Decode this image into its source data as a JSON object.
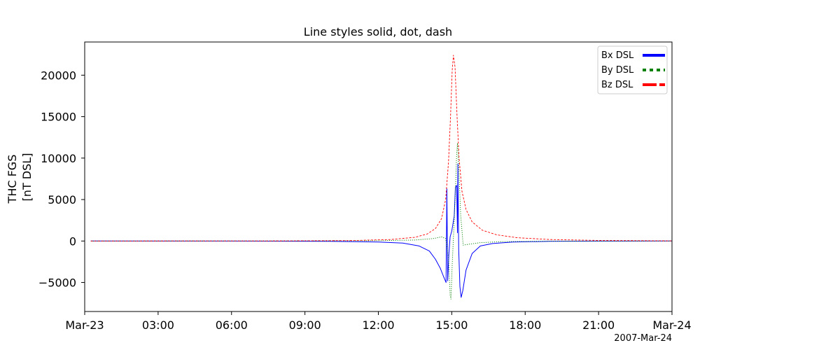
{
  "chart_data": {
    "type": "line",
    "title": "Line styles solid, dot, dash",
    "ylabel_lines": [
      "THC FGS",
      "[nT DSL]"
    ],
    "date_label": "2007-Mar-24",
    "x_range": [
      "2007-03-23T00:00",
      "2007-03-24T00:00"
    ],
    "ylim": [
      -8500,
      24000
    ],
    "x_ticks": [
      {
        "t": "2007-03-23T00:00",
        "label": "Mar-23"
      },
      {
        "t": "2007-03-23T03:00",
        "label": "03:00"
      },
      {
        "t": "2007-03-23T06:00",
        "label": "06:00"
      },
      {
        "t": "2007-03-23T09:00",
        "label": "09:00"
      },
      {
        "t": "2007-03-23T12:00",
        "label": "12:00"
      },
      {
        "t": "2007-03-23T15:00",
        "label": "15:00"
      },
      {
        "t": "2007-03-23T18:00",
        "label": "18:00"
      },
      {
        "t": "2007-03-23T21:00",
        "label": "21:00"
      },
      {
        "t": "2007-03-24T00:00",
        "label": "Mar-24"
      }
    ],
    "y_ticks": [
      {
        "v": -5000,
        "label": "−5000"
      },
      {
        "v": 0,
        "label": "0"
      },
      {
        "v": 5000,
        "label": "5000"
      },
      {
        "v": 10000,
        "label": "10000"
      },
      {
        "v": 15000,
        "label": "15000"
      },
      {
        "v": 20000,
        "label": "20000"
      }
    ],
    "grid": false,
    "legend_position": "top-right",
    "series": [
      {
        "name": "Bx DSL",
        "color": "#0000ff",
        "style": "solid",
        "points": [
          [
            "2007-03-23T00:15",
            0
          ],
          [
            "2007-03-23T06:00",
            -5
          ],
          [
            "2007-03-23T10:00",
            -40
          ],
          [
            "2007-03-23T12:00",
            -120
          ],
          [
            "2007-03-23T13:00",
            -250
          ],
          [
            "2007-03-23T13:40",
            -600
          ],
          [
            "2007-03-23T14:05",
            -1200
          ],
          [
            "2007-03-23T14:20",
            -2200
          ],
          [
            "2007-03-23T14:32",
            -3300
          ],
          [
            "2007-03-23T14:40",
            -4300
          ],
          [
            "2007-03-23T14:46",
            -5000
          ],
          [
            "2007-03-23T14:48",
            6300
          ],
          [
            "2007-03-23T14:50",
            -4800
          ],
          [
            "2007-03-23T14:53",
            -1500
          ],
          [
            "2007-03-23T14:56",
            500
          ],
          [
            "2007-03-23T15:00",
            1200
          ],
          [
            "2007-03-23T15:06",
            3000
          ],
          [
            "2007-03-23T15:09",
            6500
          ],
          [
            "2007-03-23T15:12",
            6700
          ],
          [
            "2007-03-23T15:14",
            1000
          ],
          [
            "2007-03-23T15:15",
            9300
          ],
          [
            "2007-03-23T15:17",
            -1000
          ],
          [
            "2007-03-23T15:20",
            -5500
          ],
          [
            "2007-03-23T15:23",
            -6800
          ],
          [
            "2007-03-23T15:27",
            -6000
          ],
          [
            "2007-03-23T15:35",
            -3500
          ],
          [
            "2007-03-23T15:50",
            -1500
          ],
          [
            "2007-03-23T16:10",
            -600
          ],
          [
            "2007-03-23T16:40",
            -300
          ],
          [
            "2007-03-23T17:30",
            -120
          ],
          [
            "2007-03-23T19:00",
            -40
          ],
          [
            "2007-03-23T21:00",
            -10
          ],
          [
            "2007-03-24T00:00",
            0
          ]
        ]
      },
      {
        "name": "By DSL",
        "color": "#008000",
        "style": "dotted",
        "points": [
          [
            "2007-03-23T00:15",
            0
          ],
          [
            "2007-03-23T08:00",
            10
          ],
          [
            "2007-03-23T12:00",
            40
          ],
          [
            "2007-03-23T13:30",
            120
          ],
          [
            "2007-03-23T14:15",
            300
          ],
          [
            "2007-03-23T14:35",
            500
          ],
          [
            "2007-03-23T14:45",
            300
          ],
          [
            "2007-03-23T14:52",
            -2000
          ],
          [
            "2007-03-23T14:56",
            -6500
          ],
          [
            "2007-03-23T14:58",
            -7000
          ],
          [
            "2007-03-23T15:01",
            -3000
          ],
          [
            "2007-03-23T15:05",
            1500
          ],
          [
            "2007-03-23T15:09",
            6000
          ],
          [
            "2007-03-23T15:12",
            10500
          ],
          [
            "2007-03-23T15:14",
            11800
          ],
          [
            "2007-03-23T15:17",
            9000
          ],
          [
            "2007-03-23T15:22",
            3000
          ],
          [
            "2007-03-23T15:28",
            -500
          ],
          [
            "2007-03-23T15:40",
            -400
          ],
          [
            "2007-03-23T16:10",
            -200
          ],
          [
            "2007-03-23T17:00",
            -80
          ],
          [
            "2007-03-23T19:00",
            -20
          ],
          [
            "2007-03-24T00:00",
            0
          ]
        ]
      },
      {
        "name": "Bz DSL",
        "color": "#ff0000",
        "style": "dashed",
        "points": [
          [
            "2007-03-23T00:15",
            0
          ],
          [
            "2007-03-23T08:00",
            15
          ],
          [
            "2007-03-23T11:00",
            60
          ],
          [
            "2007-03-23T12:30",
            180
          ],
          [
            "2007-03-23T13:30",
            450
          ],
          [
            "2007-03-23T14:00",
            850
          ],
          [
            "2007-03-23T14:20",
            1500
          ],
          [
            "2007-03-23T14:35",
            2700
          ],
          [
            "2007-03-23T14:45",
            5000
          ],
          [
            "2007-03-23T14:52",
            9500
          ],
          [
            "2007-03-23T14:57",
            15000
          ],
          [
            "2007-03-23T15:01",
            20500
          ],
          [
            "2007-03-23T15:04",
            22400
          ],
          [
            "2007-03-23T15:08",
            21000
          ],
          [
            "2007-03-23T15:13",
            15000
          ],
          [
            "2007-03-23T15:18",
            10000
          ],
          [
            "2007-03-23T15:25",
            6000
          ],
          [
            "2007-03-23T15:35",
            3800
          ],
          [
            "2007-03-23T15:50",
            2300
          ],
          [
            "2007-03-23T16:15",
            1300
          ],
          [
            "2007-03-23T16:50",
            750
          ],
          [
            "2007-03-23T17:40",
            400
          ],
          [
            "2007-03-23T19:00",
            180
          ],
          [
            "2007-03-23T21:00",
            70
          ],
          [
            "2007-03-24T00:00",
            20
          ]
        ]
      }
    ]
  }
}
